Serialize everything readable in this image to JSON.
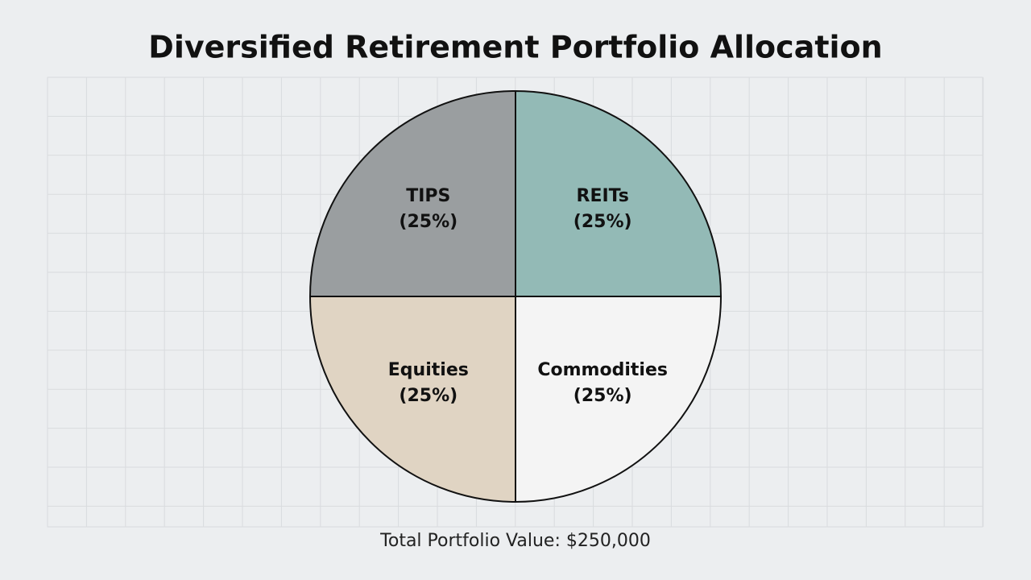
{
  "chart_data": {
    "type": "pie",
    "title": "Diversified Retirement Portfolio Allocation",
    "categories": [
      "REITs",
      "Commodities",
      "Equities",
      "TIPS"
    ],
    "values": [
      25,
      25,
      25,
      25
    ],
    "value_labels": [
      "(25%)",
      "(25%)",
      "(25%)",
      "(25%)"
    ],
    "colors": [
      "#93bab6",
      "#f4f4f4",
      "#e0d4c3",
      "#9a9ea0"
    ],
    "footer": "Total Portfolio Value: $250,000"
  }
}
